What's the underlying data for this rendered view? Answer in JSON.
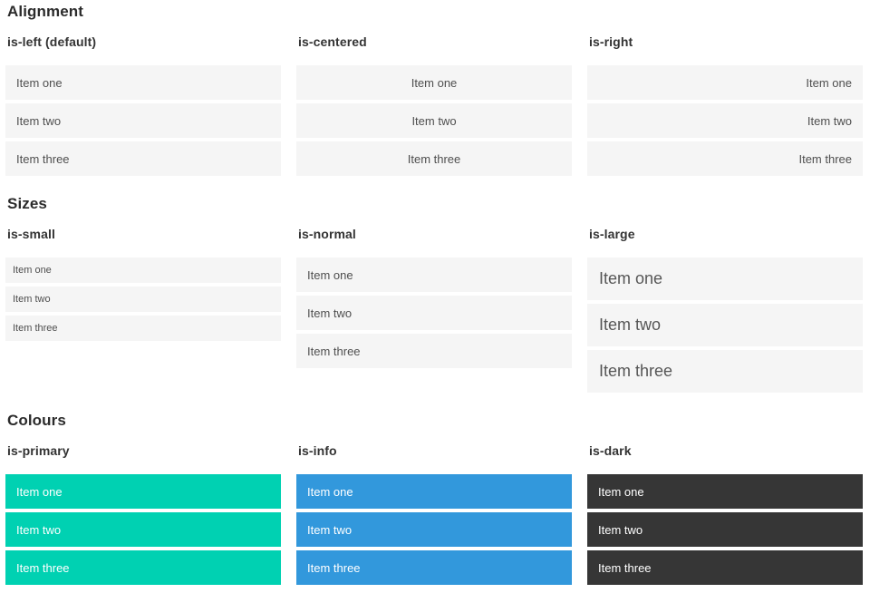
{
  "items": [
    "Item one",
    "Item two",
    "Item three"
  ],
  "sections": [
    {
      "title": "Alignment",
      "columns": [
        {
          "label": "is-left (default)"
        },
        {
          "label": "is-centered"
        },
        {
          "label": "is-right"
        }
      ]
    },
    {
      "title": "Sizes",
      "columns": [
        {
          "label": "is-small"
        },
        {
          "label": "is-normal"
        },
        {
          "label": "is-large"
        }
      ]
    },
    {
      "title": "Colours",
      "columns": [
        {
          "label": "is-primary"
        },
        {
          "label": "is-info"
        },
        {
          "label": "is-dark"
        }
      ]
    }
  ],
  "colors": {
    "primary": "#00d1b2",
    "info": "#3298dc",
    "dark": "#363636",
    "item_bg": "#f5f5f5"
  }
}
